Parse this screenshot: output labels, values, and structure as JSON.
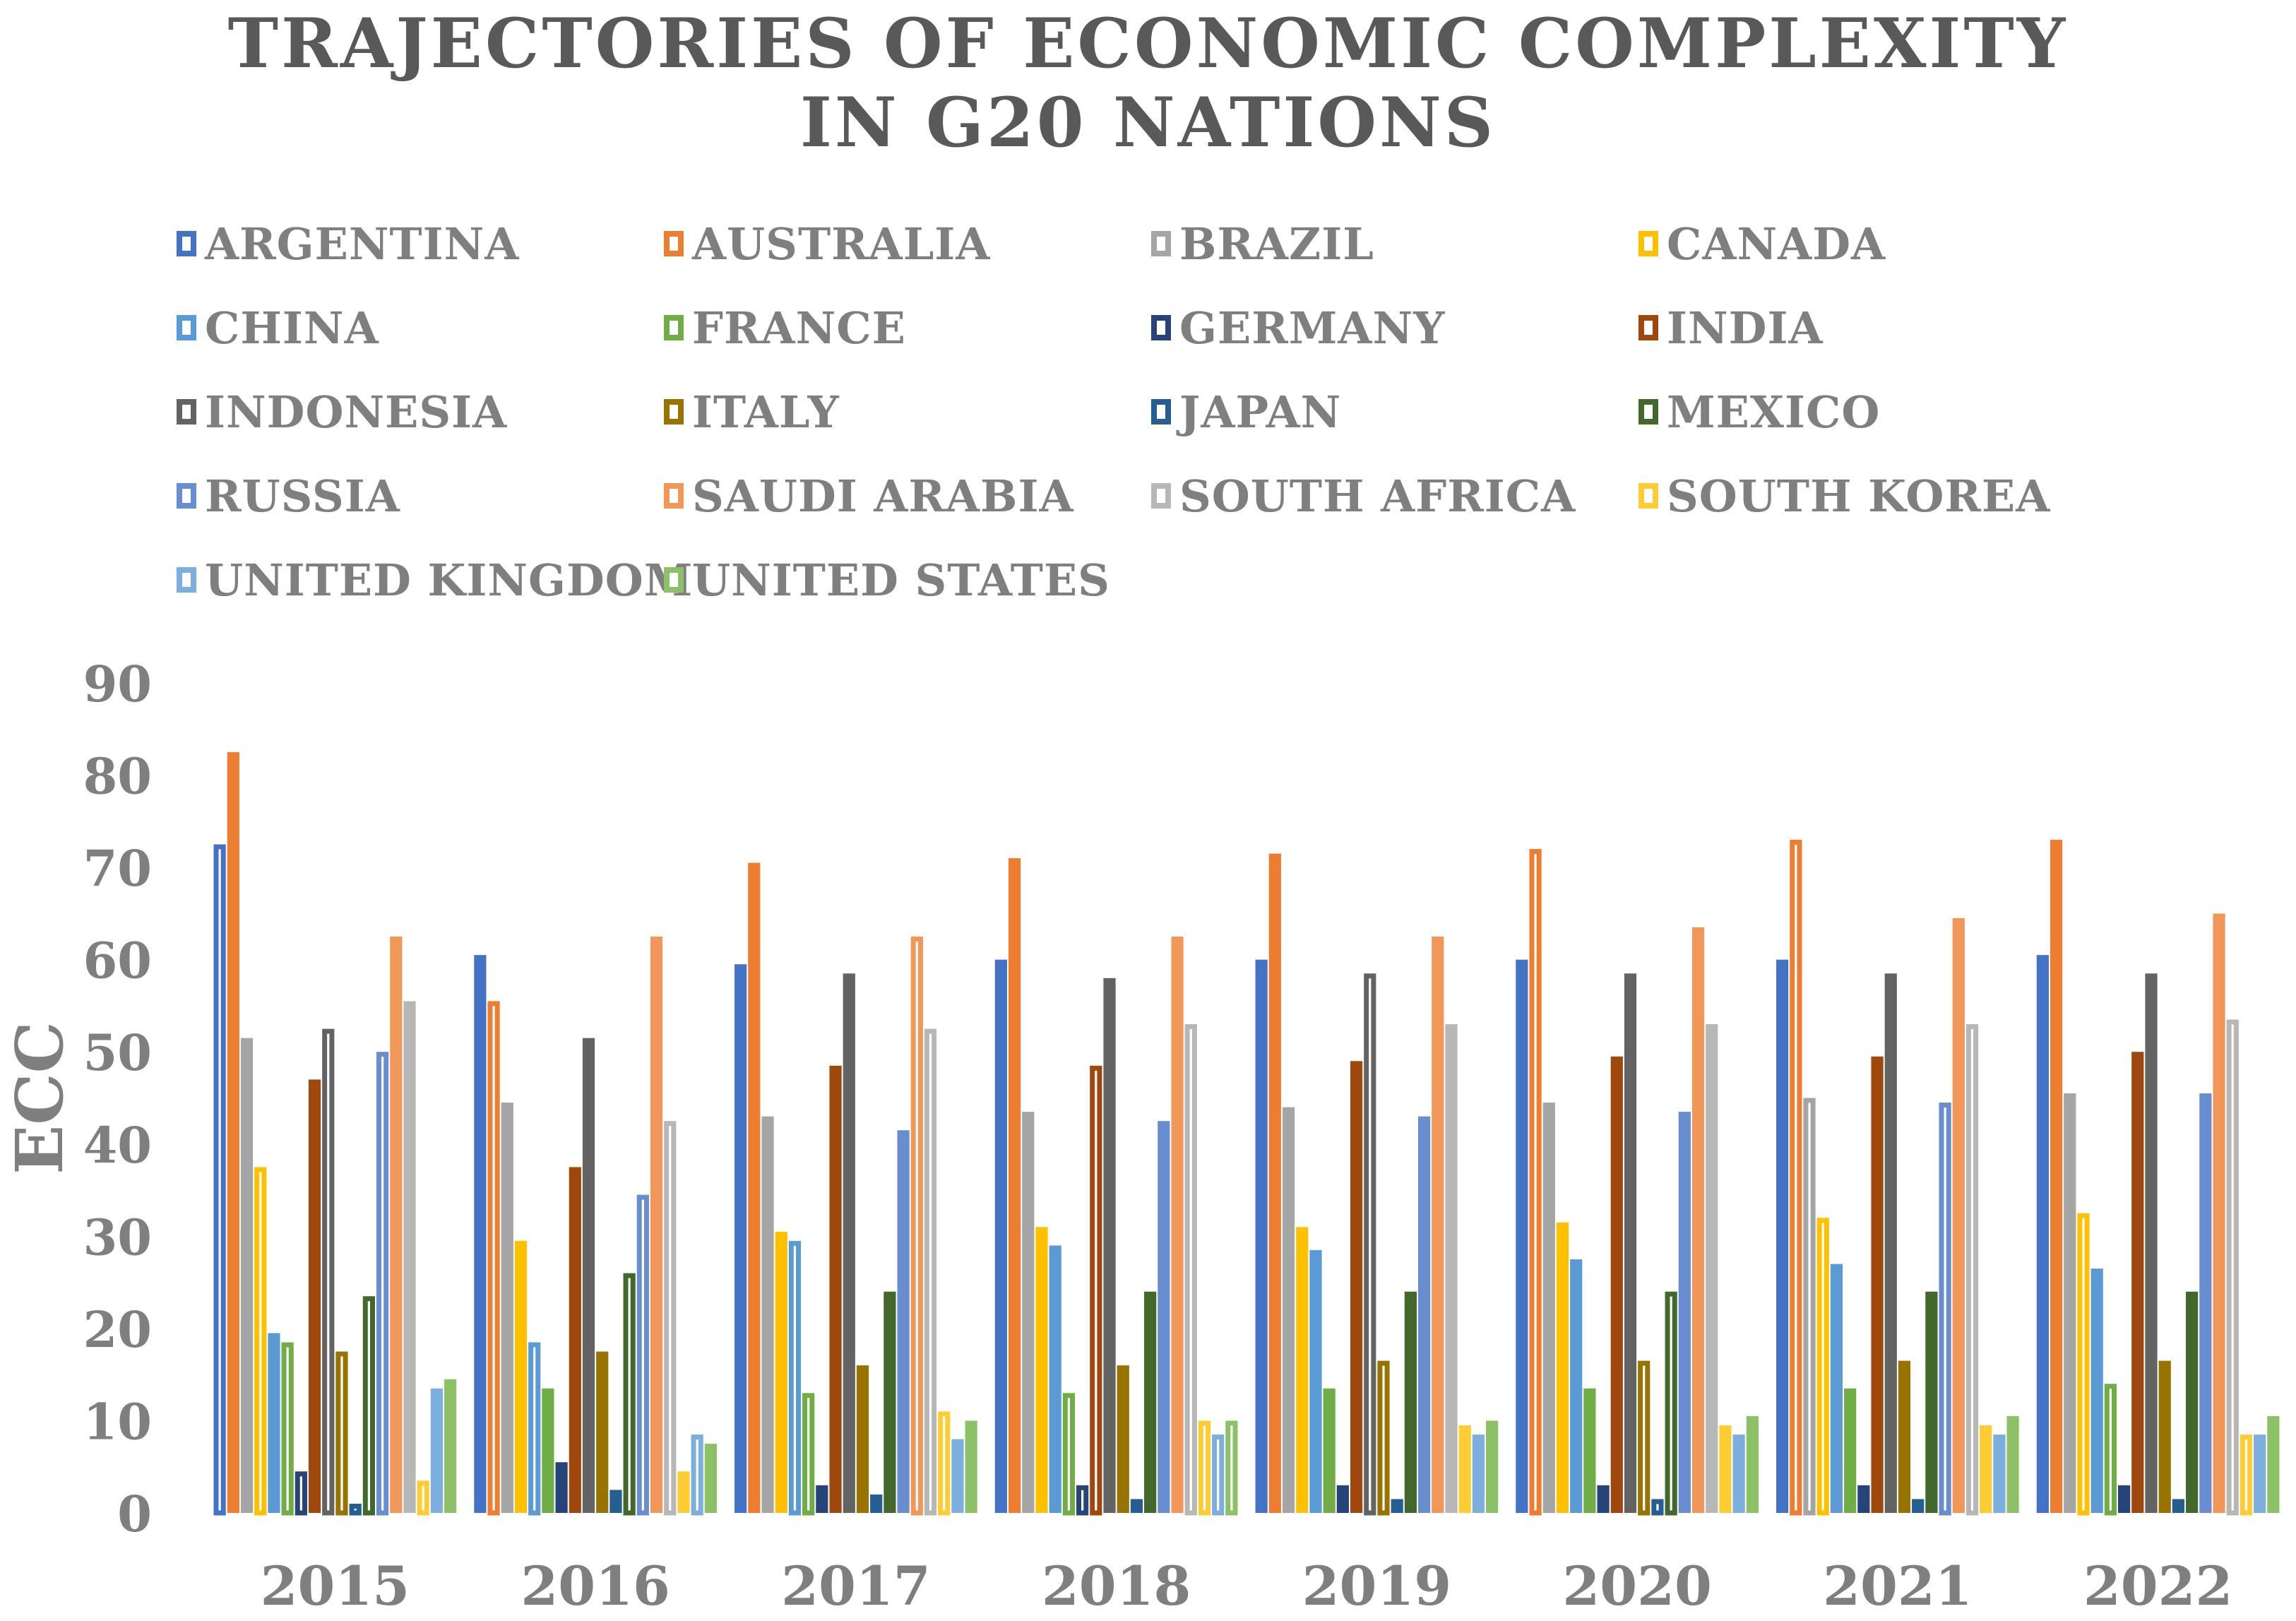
{
  "chart_data": {
    "type": "bar",
    "title_lines": [
      "TRAJECTORIES OF ECONOMIC COMPLEXITY",
      "IN G20 NATIONS"
    ],
    "xlabel": "",
    "ylabel": "ECC",
    "ylim": [
      0,
      90
    ],
    "yticks": [
      "0",
      "10",
      "20",
      "30",
      "40",
      "50",
      "60",
      "70",
      "80",
      "90"
    ],
    "categories": [
      "2015",
      "2016",
      "2017",
      "2018",
      "2019",
      "2020",
      "2021",
      "2022"
    ],
    "legend_position": "top",
    "grid": false,
    "series": [
      {
        "name": "ARGENTINA",
        "color": "#4472C4",
        "values": [
          72.5,
          60.5,
          59.5,
          60,
          60,
          60,
          60,
          60.5
        ]
      },
      {
        "name": "AUSTRALIA",
        "color": "#ED7D31",
        "values": [
          82.5,
          55.5,
          70.5,
          71,
          71.5,
          72,
          73,
          73
        ]
      },
      {
        "name": "BRAZIL",
        "color": "#A5A5A5",
        "values": [
          51.5,
          44.5,
          43,
          43.5,
          44,
          44.5,
          45,
          45.5
        ]
      },
      {
        "name": "CANADA",
        "color": "#FFC000",
        "values": [
          37.5,
          29.5,
          30.5,
          31,
          31,
          31.5,
          32,
          32.5
        ]
      },
      {
        "name": "CHINA",
        "color": "#5B9BD5",
        "values": [
          19.5,
          18.5,
          29.5,
          29,
          28.5,
          27.5,
          27,
          26.5
        ]
      },
      {
        "name": "FRANCE",
        "color": "#70AD47",
        "values": [
          18.5,
          13.5,
          13,
          13,
          13.5,
          13.5,
          13.5,
          14
        ]
      },
      {
        "name": "GERMANY",
        "color": "#264478",
        "values": [
          4.5,
          5.5,
          3,
          3,
          3,
          3,
          3,
          3
        ]
      },
      {
        "name": "INDIA",
        "color": "#9E480E",
        "values": [
          47,
          37.5,
          48.5,
          48.5,
          49,
          49.5,
          49.5,
          50
        ]
      },
      {
        "name": "INDONESIA",
        "color": "#636363",
        "values": [
          52.5,
          51.5,
          58.5,
          58,
          58.5,
          58.5,
          58.5,
          58.5
        ]
      },
      {
        "name": "ITALY",
        "color": "#997300",
        "values": [
          17.5,
          17.5,
          16,
          16,
          16.5,
          16.5,
          16.5,
          16.5
        ]
      },
      {
        "name": "JAPAN",
        "color": "#255E91",
        "values": [
          1,
          2.5,
          2,
          1.5,
          1.5,
          1.5,
          1.5,
          1.5
        ]
      },
      {
        "name": "MEXICO",
        "color": "#43682B",
        "values": [
          23.5,
          26,
          24,
          24,
          24,
          24,
          24,
          24
        ]
      },
      {
        "name": "RUSSIA",
        "color": "#698ED0",
        "values": [
          50,
          34.5,
          41.5,
          42.5,
          43,
          43.5,
          44.5,
          45.5
        ]
      },
      {
        "name": "SAUDI ARABIA",
        "color": "#F1975A",
        "values": [
          62.5,
          62.5,
          62.5,
          62.5,
          62.5,
          63.5,
          64.5,
          65
        ]
      },
      {
        "name": "SOUTH AFRICA",
        "color": "#B7B7B7",
        "values": [
          55.5,
          42.5,
          52.5,
          53,
          53,
          53,
          53,
          53.5
        ]
      },
      {
        "name": "SOUTH KOREA",
        "color": "#FFCD33",
        "values": [
          3.5,
          4.5,
          11,
          10,
          9.5,
          9.5,
          9.5,
          8.5
        ]
      },
      {
        "name": "UNITED KINGDOM",
        "color": "#7CAFDD",
        "values": [
          13.5,
          8.5,
          8,
          8.5,
          8.5,
          8.5,
          8.5,
          8.5
        ]
      },
      {
        "name": "UNITED STATES",
        "color": "#8CC168",
        "values": [
          14.5,
          7.5,
          10,
          10,
          10,
          10.5,
          10.5,
          10.5
        ]
      }
    ],
    "outlined_bars": [
      [
        0,
        3,
        5,
        6,
        8,
        9,
        10,
        11,
        12,
        15
      ],
      [
        1,
        4,
        11,
        12,
        14,
        16
      ],
      [
        4,
        5,
        13,
        14,
        15
      ],
      [
        5,
        6,
        7,
        14,
        15,
        16,
        17
      ],
      [
        8,
        9
      ],
      [
        1,
        9,
        10,
        11
      ],
      [
        1,
        2,
        3,
        12,
        14
      ],
      [
        3,
        5,
        14,
        15
      ]
    ]
  }
}
